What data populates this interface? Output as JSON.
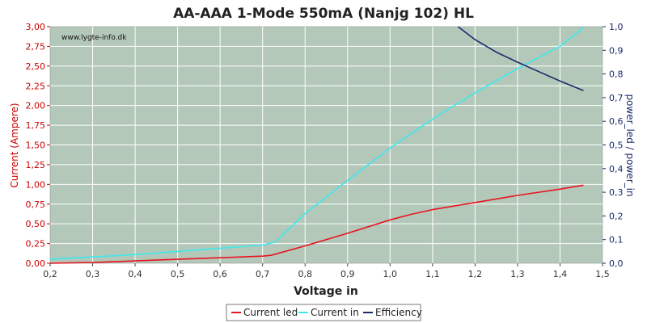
{
  "chart_data": {
    "type": "line",
    "title": "AA-AAA 1-Mode 550mA (Nanjg 102) HL",
    "watermark": "www.lygte-info.dk",
    "xlabel": "Voltage in",
    "ylabel_left": "Current (Ampere)",
    "ylabel_right": "power_led / power_in",
    "xlim": [
      0.2,
      1.5
    ],
    "ylim_left": [
      0,
      3.0
    ],
    "ylim_right": [
      0,
      1.0
    ],
    "x_ticks": [
      "0,2",
      "0,3",
      "0,4",
      "0,5",
      "0,6",
      "0,7",
      "0,8",
      "0,9",
      "1,0",
      "1,1",
      "1,2",
      "1,3",
      "1,4",
      "1,5"
    ],
    "y_left_ticks": [
      "0,00",
      "0,25",
      "0,50",
      "0,75",
      "1,00",
      "1,25",
      "1,50",
      "1,75",
      "2,00",
      "2,25",
      "2,50",
      "2,75",
      "3,00"
    ],
    "y_right_ticks": [
      "0,0",
      "0,1",
      "0,2",
      "0,3",
      "0,4",
      "0,5",
      "0,6",
      "0,7",
      "0,8",
      "0,9",
      "1,0"
    ],
    "grid": true,
    "legend_position": "bottom",
    "colors": {
      "plot_bg": "#b3c8b9",
      "grid": "#ffffff",
      "left_axis": "#cc0000",
      "right_axis": "#1a2a6c",
      "current_led": "#e8141e",
      "current_in": "#3ee8ee",
      "efficiency": "#1a2a6c"
    },
    "series": [
      {
        "name": "Current led",
        "axis": "left",
        "x": [
          0.2,
          0.3,
          0.4,
          0.5,
          0.6,
          0.7,
          0.72,
          0.8,
          0.9,
          1.0,
          1.05,
          1.1,
          1.2,
          1.3,
          1.4,
          1.455
        ],
        "y": [
          0.0,
          0.01,
          0.03,
          0.05,
          0.07,
          0.09,
          0.1,
          0.22,
          0.38,
          0.55,
          0.62,
          0.68,
          0.77,
          0.86,
          0.94,
          0.99
        ]
      },
      {
        "name": "Current in",
        "axis": "left",
        "x": [
          0.2,
          0.3,
          0.4,
          0.5,
          0.6,
          0.7,
          0.73,
          0.8,
          0.9,
          1.0,
          1.1,
          1.2,
          1.3,
          1.4,
          1.455
        ],
        "y": [
          0.05,
          0.08,
          0.11,
          0.15,
          0.19,
          0.23,
          0.27,
          0.63,
          1.05,
          1.46,
          1.83,
          2.16,
          2.47,
          2.75,
          2.99
        ]
      },
      {
        "name": "Efficiency",
        "axis": "right",
        "x": [
          1.16,
          1.2,
          1.25,
          1.3,
          1.35,
          1.4,
          1.455
        ],
        "y": [
          1.0,
          0.945,
          0.892,
          0.85,
          0.81,
          0.77,
          0.73
        ]
      }
    ]
  }
}
